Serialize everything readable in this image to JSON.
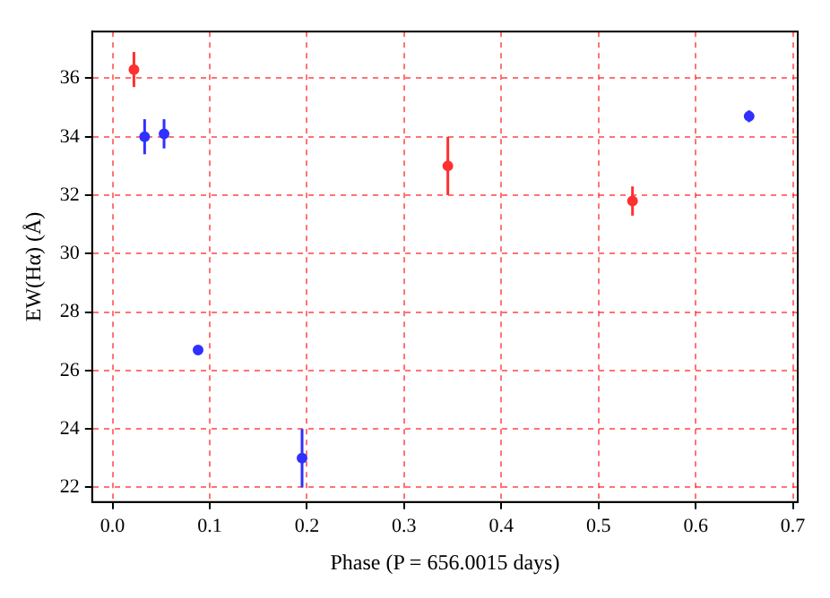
{
  "chart_data": {
    "type": "scatter",
    "xlabel": "Phase (P = 656.0015 days)",
    "ylabel": "EW(Hα) (Å)",
    "xlim": [
      -0.021,
      0.705
    ],
    "ylim": [
      21.5,
      37.6
    ],
    "xticks": [
      {
        "value": 0,
        "label": "0.0"
      },
      0.1,
      0.2,
      0.3,
      0.4,
      0.5,
      0.6,
      0.7
    ],
    "yticks": [
      22,
      24,
      26,
      28,
      30,
      32,
      34,
      36
    ],
    "grid": true,
    "marker": "circle",
    "line_style": "dashed",
    "series": [
      {
        "color": "#ff3030",
        "x": [
          0.022,
          0.345,
          0.535
        ],
        "values": [
          36.3,
          33.0,
          31.8
        ],
        "errors": [
          0.6,
          1.0,
          0.5
        ]
      },
      {
        "color": "#3030ff",
        "x": [
          0.033,
          0.053,
          0.088,
          0.195,
          0.655
        ],
        "values": [
          34.0,
          34.1,
          26.7,
          23.0,
          34.7
        ],
        "errors": [
          0.6,
          0.5,
          0.1,
          1.0,
          0.2
        ]
      }
    ]
  }
}
